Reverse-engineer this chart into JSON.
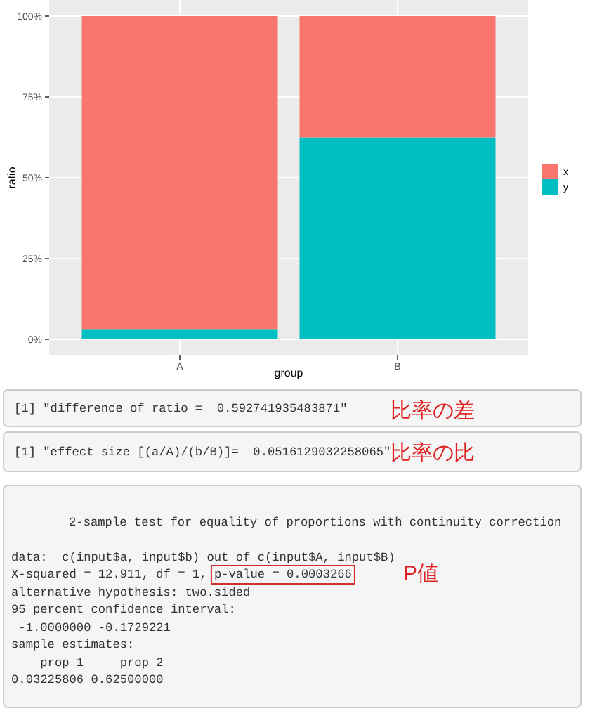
{
  "chart_data": {
    "type": "bar",
    "xlabel": "group",
    "ylabel": "ratio",
    "categories": [
      "A",
      "B"
    ],
    "stacked": true,
    "series": [
      {
        "name": "y",
        "color": "#00bfc4",
        "values": [
          3.2,
          62.5
        ]
      },
      {
        "name": "x",
        "color": "#f8766d",
        "values": [
          96.8,
          37.5
        ]
      }
    ],
    "ylim": [
      -5,
      105
    ],
    "yticks": [
      {
        "value": 0,
        "label": "0%"
      },
      {
        "value": 25,
        "label": "25%"
      },
      {
        "value": 50,
        "label": "50%"
      },
      {
        "value": 75,
        "label": "75%"
      },
      {
        "value": 100,
        "label": "100%"
      }
    ],
    "grid": true,
    "legend": "right",
    "annotations": [
      "[1] \"difference of ratio =  0.592741935483871\"",
      "比率の差",
      "[1] \"effect size [(a/A)/(b/B)]=  0.0516129032258065\"",
      "比率の比",
      "2-sample test for equality of proportions with continuity correction",
      "data:  c(input$a, input$b) out of c(input$A, input$B)",
      "X-squared = 12.911, df = 1,",
      "p-value = 0.0003266",
      "P値",
      "alternative hypothesis: two.sided",
      "95 percent confidence interval:",
      " -1.0000000 -0.1729221",
      "sample estimates:",
      "    prop 1     prop 2",
      "0.03225806 0.62500000"
    ]
  }
}
